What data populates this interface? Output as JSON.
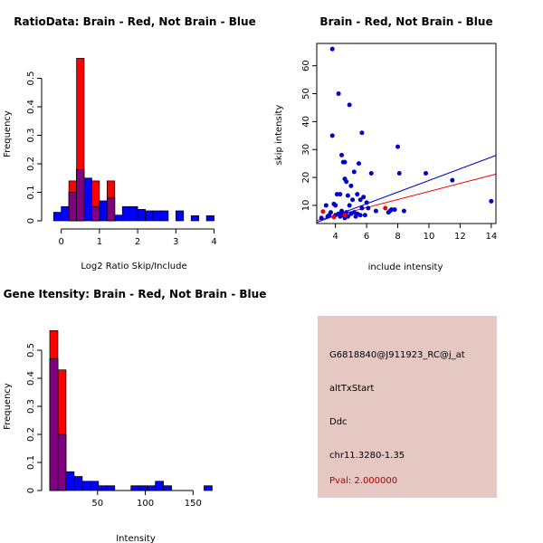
{
  "chart_data": [
    {
      "type": "histogram",
      "title": "RatioData: Brain - Red, Not Brain - Blue",
      "xlabel": "Log2 Ratio Skip/Include",
      "ylabel": "Frequency",
      "xlim": [
        -0.3,
        4.2
      ],
      "ylim": [
        0,
        0.6
      ],
      "xticks": [
        0,
        1,
        2,
        3,
        4
      ],
      "yticks": [
        0,
        0.1,
        0.2,
        0.3,
        0.4,
        0.5
      ],
      "bin_width": 0.2,
      "series": [
        {
          "name": "Not Brain",
          "color": "#0000ff",
          "bins": [
            [
              -0.2,
              0.03
            ],
            [
              0.0,
              0.05
            ],
            [
              0.2,
              0.1
            ],
            [
              0.4,
              0.18
            ],
            [
              0.6,
              0.15
            ],
            [
              0.8,
              0.05
            ],
            [
              1.0,
              0.07
            ],
            [
              1.2,
              0.08
            ],
            [
              1.4,
              0.02
            ],
            [
              1.6,
              0.05
            ],
            [
              1.8,
              0.05
            ],
            [
              2.0,
              0.04
            ],
            [
              2.2,
              0.035
            ],
            [
              2.4,
              0.035
            ],
            [
              2.6,
              0.035
            ],
            [
              3.0,
              0.035
            ],
            [
              3.4,
              0.018
            ],
            [
              3.8,
              0.018
            ]
          ]
        },
        {
          "name": "Brain",
          "color": "#ff0000",
          "bins": [
            [
              0.2,
              0.14
            ],
            [
              0.4,
              0.57
            ],
            [
              0.8,
              0.14
            ],
            [
              1.2,
              0.14
            ]
          ]
        }
      ]
    },
    {
      "type": "scatter",
      "title": "Brain - Red, Not Brain - Blue",
      "xlabel": "include intensity",
      "ylabel": "skip intensity",
      "xlim": [
        2.8,
        14.3
      ],
      "ylim": [
        3.5,
        68
      ],
      "xticks": [
        4,
        6,
        8,
        10,
        12,
        14
      ],
      "yticks": [
        10,
        20,
        30,
        40,
        50,
        60
      ],
      "series": [
        {
          "name": "Not Brain",
          "color": "#0000cc",
          "points": [
            [
              3.8,
              66
            ],
            [
              4.2,
              50
            ],
            [
              4.9,
              46
            ],
            [
              5.7,
              36
            ],
            [
              3.8,
              35
            ],
            [
              8.0,
              31
            ],
            [
              4.4,
              28
            ],
            [
              4.5,
              25.5
            ],
            [
              4.6,
              25.5
            ],
            [
              5.5,
              25
            ],
            [
              5.2,
              22
            ],
            [
              6.3,
              21.5
            ],
            [
              8.1,
              21.5
            ],
            [
              9.8,
              21.5
            ],
            [
              4.6,
              19.5
            ],
            [
              4.7,
              18.5
            ],
            [
              11.5,
              19
            ],
            [
              5.0,
              17
            ],
            [
              5.4,
              14
            ],
            [
              4.1,
              14
            ],
            [
              4.3,
              14
            ],
            [
              4.8,
              13.5
            ],
            [
              5.8,
              13
            ],
            [
              5.1,
              12
            ],
            [
              5.6,
              12
            ],
            [
              6.0,
              11
            ],
            [
              14.0,
              11.5
            ],
            [
              3.4,
              10
            ],
            [
              3.9,
              10.5
            ],
            [
              4.0,
              10
            ],
            [
              4.9,
              10
            ],
            [
              5.7,
              9
            ],
            [
              6.1,
              9
            ],
            [
              7.6,
              8.5
            ],
            [
              4.4,
              8
            ],
            [
              7.5,
              8
            ],
            [
              7.8,
              8.5
            ],
            [
              3.7,
              7.5
            ],
            [
              4.7,
              7.5
            ],
            [
              5.2,
              7.5
            ],
            [
              6.6,
              8
            ],
            [
              8.4,
              8
            ],
            [
              3.6,
              6.5
            ],
            [
              4.0,
              6.5
            ],
            [
              4.2,
              7
            ],
            [
              4.5,
              6.5
            ],
            [
              5.0,
              7
            ],
            [
              5.4,
              7
            ],
            [
              5.9,
              6.5
            ],
            [
              7.4,
              7.5
            ],
            [
              3.1,
              5.5
            ],
            [
              3.5,
              6
            ],
            [
              4.3,
              6
            ],
            [
              4.8,
              6
            ],
            [
              5.3,
              6
            ],
            [
              5.6,
              6.5
            ],
            [
              4.6,
              5.5
            ]
          ]
        },
        {
          "name": "Brain",
          "color": "#ee0000",
          "points": [
            [
              3.2,
              7.8
            ],
            [
              3.9,
              5.8
            ],
            [
              4.6,
              6.5
            ],
            [
              7.2,
              9
            ]
          ]
        }
      ],
      "fit_lines": [
        {
          "series": "Not Brain",
          "color": "#0000cc",
          "from": [
            2.8,
            3.9
          ],
          "to": [
            14.3,
            27.9
          ]
        },
        {
          "series": "Brain",
          "color": "#ee0000",
          "from": [
            2.8,
            4.6
          ],
          "to": [
            14.3,
            21.2
          ]
        }
      ]
    },
    {
      "type": "histogram",
      "title": "Gene Itensity: Brain - Red, Not Brain - Blue",
      "xlabel": "Intensity",
      "ylabel": "Frequency",
      "xlim": [
        0,
        180
      ],
      "ylim": [
        0,
        0.6
      ],
      "xticks": [
        50,
        100,
        150
      ],
      "yticks": [
        0,
        0.1,
        0.2,
        0.3,
        0.4,
        0.5
      ],
      "bin_width": 8.5,
      "series": [
        {
          "name": "Not Brain",
          "color": "#0000ff",
          "bins": [
            [
              0,
              0.47
            ],
            [
              8.5,
              0.2
            ],
            [
              17,
              0.067
            ],
            [
              25.5,
              0.05
            ],
            [
              34,
              0.033
            ],
            [
              42.5,
              0.033
            ],
            [
              51,
              0.017
            ],
            [
              59.5,
              0.017
            ],
            [
              85,
              0.017
            ],
            [
              93.5,
              0.017
            ],
            [
              102,
              0.017
            ],
            [
              110.5,
              0.033
            ],
            [
              119,
              0.017
            ],
            [
              161.5,
              0.017
            ]
          ]
        },
        {
          "name": "Brain",
          "color": "#ff0000",
          "bins": [
            [
              0,
              0.57
            ],
            [
              8.5,
              0.43
            ]
          ]
        }
      ]
    }
  ],
  "info_panel": {
    "probe_id": "G6818840@J911923_RC@j_at",
    "event_type": "altTxStart",
    "gene": "Ddc",
    "location": "chr11.3280-1.35",
    "pval": "Pval: 2.000000"
  }
}
